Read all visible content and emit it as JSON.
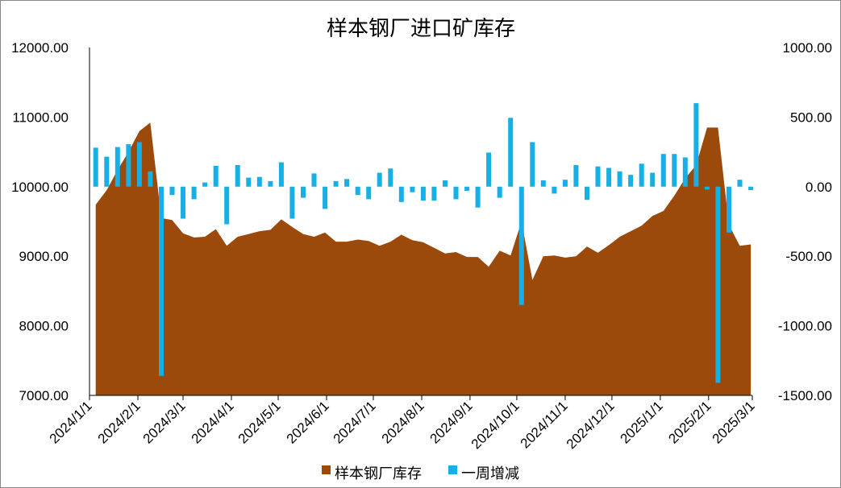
{
  "chart_data": {
    "type": "area+bar",
    "title": "样本钢厂进口矿库存",
    "left_axis": {
      "min": 7000,
      "max": 12000,
      "ticks": [
        {
          "v": 7000,
          "label": "7000.00"
        },
        {
          "v": 8000,
          "label": "8000.00"
        },
        {
          "v": 9000,
          "label": "9000.00"
        },
        {
          "v": 10000,
          "label": "10000.00"
        },
        {
          "v": 11000,
          "label": "11000.00"
        },
        {
          "v": 12000,
          "label": "12000.00"
        }
      ]
    },
    "right_axis": {
      "min": -1500,
      "max": 1000,
      "ticks": [
        {
          "v": -1500,
          "label": "-1500.00"
        },
        {
          "v": -1000,
          "label": "-1000.00"
        },
        {
          "v": -500,
          "label": "-500.00"
        },
        {
          "v": 0,
          "label": "0.00"
        },
        {
          "v": 500,
          "label": "500.00"
        },
        {
          "v": 1000,
          "label": "1000.00"
        }
      ]
    },
    "x_axis": {
      "start": "2024-01-01",
      "end": "2025-03-01",
      "tick_labels": [
        "2024/1/1",
        "2024/2/1",
        "2024/3/1",
        "2024/4/1",
        "2024/5/1",
        "2024/6/1",
        "2024/7/1",
        "2024/8/1",
        "2024/9/1",
        "2024/10/1",
        "2024/11/1",
        "2024/12/1",
        "2025/1/1",
        "2025/2/1",
        "2025/3/1"
      ]
    },
    "series": [
      {
        "name": "样本钢厂库存",
        "type": "area",
        "axis": "left",
        "color": "#9C4A0B",
        "x": [
          "2024-01-05",
          "2024-01-12",
          "2024-01-19",
          "2024-01-26",
          "2024-02-02",
          "2024-02-09",
          "2024-02-16",
          "2024-02-23",
          "2024-03-01",
          "2024-03-08",
          "2024-03-15",
          "2024-03-22",
          "2024-03-29",
          "2024-04-05",
          "2024-04-12",
          "2024-04-19",
          "2024-04-26",
          "2024-05-03",
          "2024-05-10",
          "2024-05-17",
          "2024-05-24",
          "2024-05-31",
          "2024-06-07",
          "2024-06-14",
          "2024-06-21",
          "2024-06-28",
          "2024-07-05",
          "2024-07-12",
          "2024-07-19",
          "2024-07-26",
          "2024-08-02",
          "2024-08-09",
          "2024-08-16",
          "2024-08-23",
          "2024-08-30",
          "2024-09-06",
          "2024-09-13",
          "2024-09-20",
          "2024-09-27",
          "2024-10-04",
          "2024-10-11",
          "2024-10-18",
          "2024-10-25",
          "2024-11-01",
          "2024-11-08",
          "2024-11-15",
          "2024-11-22",
          "2024-11-29",
          "2024-12-06",
          "2024-12-13",
          "2024-12-20",
          "2024-12-27",
          "2025-01-03",
          "2025-01-10",
          "2025-01-17",
          "2025-01-24",
          "2025-01-31",
          "2025-02-07",
          "2025-02-14",
          "2025-02-21",
          "2025-02-28"
        ],
        "values": [
          9740,
          9950,
          10240,
          10500,
          10800,
          10920,
          9550,
          9520,
          9330,
          9270,
          9280,
          9390,
          9150,
          9280,
          9320,
          9360,
          9380,
          9530,
          9420,
          9320,
          9280,
          9340,
          9210,
          9210,
          9240,
          9220,
          9150,
          9210,
          9310,
          9230,
          9200,
          9120,
          9040,
          9060,
          8990,
          8990,
          8850,
          9080,
          9010,
          9500,
          8660,
          9000,
          9010,
          8980,
          9000,
          9140,
          9050,
          9160,
          9280,
          9360,
          9440,
          9580,
          9650,
          9870,
          10120,
          10310,
          10850,
          10850,
          9450,
          9150,
          9170
        ]
      },
      {
        "name": "一周增减",
        "type": "bar",
        "axis": "right",
        "color": "#16AFE6",
        "x": [
          "2024-01-05",
          "2024-01-12",
          "2024-01-19",
          "2024-01-26",
          "2024-02-02",
          "2024-02-09",
          "2024-02-16",
          "2024-02-23",
          "2024-03-01",
          "2024-03-08",
          "2024-03-15",
          "2024-03-22",
          "2024-03-29",
          "2024-04-05",
          "2024-04-12",
          "2024-04-19",
          "2024-04-26",
          "2024-05-03",
          "2024-05-10",
          "2024-05-17",
          "2024-05-24",
          "2024-05-31",
          "2024-06-07",
          "2024-06-14",
          "2024-06-21",
          "2024-06-28",
          "2024-07-05",
          "2024-07-12",
          "2024-07-19",
          "2024-07-26",
          "2024-08-02",
          "2024-08-09",
          "2024-08-16",
          "2024-08-23",
          "2024-08-30",
          "2024-09-06",
          "2024-09-13",
          "2024-09-20",
          "2024-09-27",
          "2024-10-04",
          "2024-10-11",
          "2024-10-18",
          "2024-10-25",
          "2024-11-01",
          "2024-11-08",
          "2024-11-15",
          "2024-11-22",
          "2024-11-29",
          "2024-12-06",
          "2024-12-13",
          "2024-12-20",
          "2024-12-27",
          "2025-01-03",
          "2025-01-10",
          "2025-01-17",
          "2025-01-24",
          "2025-01-31",
          "2025-02-07",
          "2025-02-14",
          "2025-02-21",
          "2025-02-28"
        ],
        "values": [
          280,
          215,
          285,
          305,
          320,
          110,
          -1360,
          -60,
          -230,
          -90,
          30,
          150,
          -270,
          155,
          65,
          70,
          40,
          175,
          -230,
          -80,
          95,
          -160,
          40,
          55,
          -60,
          -90,
          100,
          130,
          -110,
          -40,
          -100,
          -100,
          45,
          -90,
          -30,
          -150,
          245,
          -80,
          495,
          -850,
          320,
          45,
          -50,
          50,
          155,
          -95,
          145,
          135,
          110,
          85,
          165,
          100,
          235,
          235,
          210,
          600,
          -20,
          -1410,
          -330,
          50,
          -25
        ]
      }
    ],
    "legend": {
      "position": "bottom",
      "items": [
        "样本钢厂库存",
        "一周增减"
      ]
    }
  }
}
